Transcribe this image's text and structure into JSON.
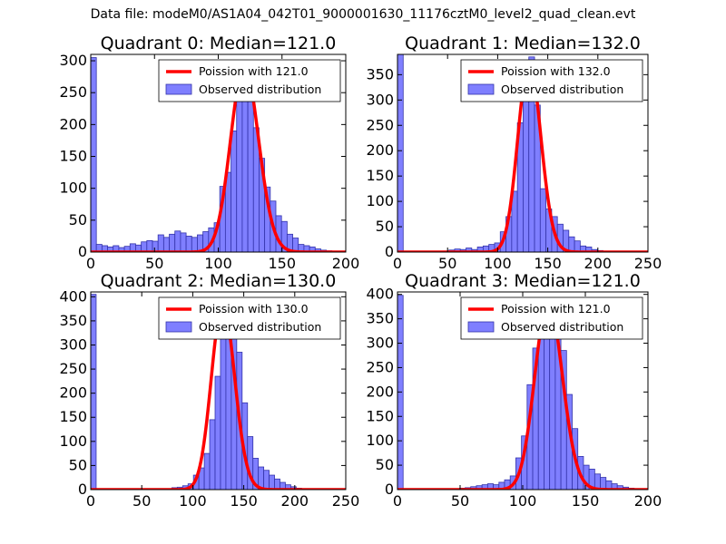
{
  "figure_title": "Data file: modeM0/AS1A04_042T01_9000001630_11176cztM0_level2_quad_clean.evt",
  "colors": {
    "bar_fill": "#7f7fff",
    "bar_edge": "#3333aa",
    "curve": "#ff0000"
  },
  "chart_data": [
    {
      "type": "bar",
      "title": "Quadrant 0: Median=121.0",
      "xlim": [
        0,
        200
      ],
      "ylim": [
        0,
        310
      ],
      "xticks": [
        0,
        50,
        100,
        150,
        200
      ],
      "yticks": [
        0,
        50,
        100,
        150,
        200,
        250,
        300
      ],
      "bin_width": 4.4,
      "bins": [
        0,
        4.4,
        8.8,
        13.2,
        17.6,
        22,
        26.4,
        30.8,
        35.2,
        39.6,
        44,
        48.4,
        52.8,
        57.2,
        61.6,
        66,
        70.4,
        74.8,
        79.2,
        83.6,
        88,
        92.4,
        96.8,
        101.2,
        105.6,
        110,
        114.4,
        118.8,
        123.2,
        127.6,
        132,
        136.4,
        140.8,
        145.2,
        149.6,
        154,
        158.4,
        162.8,
        167.2,
        171.6,
        176,
        180.4,
        184.8,
        189.2
      ],
      "counts": [
        305,
        12,
        10,
        8,
        10,
        7,
        9,
        13,
        11,
        16,
        18,
        17,
        27,
        23,
        28,
        33,
        30,
        25,
        23,
        27,
        32,
        38,
        46,
        103,
        125,
        190,
        285,
        285,
        240,
        195,
        147,
        102,
        80,
        57,
        48,
        28,
        22,
        12,
        10,
        8,
        5,
        3,
        2,
        1
      ],
      "curve_peak": 291,
      "legend": {
        "curve_label": "Poission with 121.0",
        "bars_label": "Observed distribution",
        "location": "upper right"
      }
    },
    {
      "type": "bar",
      "title": "Quadrant 1: Median=132.0",
      "xlim": [
        0,
        250
      ],
      "ylim": [
        0,
        390
      ],
      "xticks": [
        0,
        50,
        100,
        150,
        200,
        250
      ],
      "yticks": [
        0,
        50,
        100,
        150,
        200,
        250,
        300,
        350
      ],
      "bin_width": 5.7,
      "bins": [
        0,
        5.7,
        11.4,
        17.1,
        22.8,
        28.5,
        34.2,
        39.9,
        45.6,
        51.3,
        57,
        62.7,
        68.4,
        74.1,
        79.8,
        85.5,
        91.2,
        96.9,
        102.6,
        108.3,
        114,
        119.7,
        125.4,
        131.1,
        136.8,
        142.5,
        148.2,
        153.9,
        159.6,
        165.3,
        171,
        176.7,
        182.4,
        188.1,
        193.8,
        199.5,
        205.2,
        210.9,
        216.6,
        222.3
      ],
      "counts": [
        390,
        0,
        0,
        0,
        0,
        0,
        0,
        1,
        2,
        4,
        6,
        5,
        8,
        5,
        10,
        12,
        15,
        18,
        40,
        70,
        120,
        255,
        305,
        385,
        290,
        125,
        85,
        70,
        55,
        43,
        30,
        22,
        12,
        10,
        5,
        3,
        1,
        1,
        0,
        1
      ],
      "curve_peak": 374,
      "legend": {
        "curve_label": "Poission with 132.0",
        "bars_label": "Observed distribution",
        "location": "upper right"
      }
    },
    {
      "type": "bar",
      "title": "Quadrant 2: Median=130.0",
      "xlim": [
        0,
        250
      ],
      "ylim": [
        0,
        410
      ],
      "xticks": [
        0,
        50,
        100,
        150,
        200,
        250
      ],
      "yticks": [
        0,
        50,
        100,
        150,
        200,
        250,
        300,
        350,
        400
      ],
      "bin_width": 5.3,
      "bins": [
        0,
        5.3,
        10.6,
        15.9,
        21.2,
        26.5,
        31.8,
        37.1,
        42.4,
        47.7,
        53,
        58.3,
        63.6,
        68.9,
        74.2,
        79.5,
        84.8,
        90.1,
        95.4,
        100.7,
        106,
        111.3,
        116.6,
        121.9,
        127.2,
        132.5,
        137.8,
        143.1,
        148.4,
        153.7,
        159,
        164.3,
        169.6,
        174.9,
        180.2,
        185.5,
        190.8,
        196.1,
        201.4,
        206.7
      ],
      "counts": [
        405,
        0,
        0,
        0,
        0,
        0,
        0,
        0,
        0,
        0,
        0,
        0,
        0,
        1,
        2,
        4,
        5,
        8,
        12,
        30,
        45,
        75,
        145,
        235,
        350,
        385,
        375,
        285,
        180,
        110,
        65,
        47,
        40,
        30,
        22,
        15,
        10,
        6,
        3,
        2
      ],
      "curve_peak": 385,
      "legend": {
        "curve_label": "Poission with 130.0",
        "bars_label": "Observed distribution",
        "location": "upper right"
      }
    },
    {
      "type": "bar",
      "title": "Quadrant 3: Median=121.0",
      "xlim": [
        0,
        200
      ],
      "ylim": [
        0,
        405
      ],
      "xticks": [
        0,
        50,
        100,
        150,
        200
      ],
      "yticks": [
        0,
        50,
        100,
        150,
        200,
        250,
        300,
        350,
        400
      ],
      "bin_width": 4.5,
      "bins": [
        0,
        4.5,
        9,
        13.5,
        18,
        22.5,
        27,
        31.5,
        36,
        40.5,
        45,
        49.5,
        54,
        58.5,
        63,
        67.5,
        72,
        76.5,
        81,
        85.5,
        90,
        94.5,
        99,
        103.5,
        108,
        112.5,
        117,
        121.5,
        126,
        130.5,
        135,
        139.5,
        144,
        148.5,
        153,
        157.5,
        162,
        166.5,
        171,
        175.5,
        180,
        184.5,
        189,
        193.5
      ],
      "counts": [
        398,
        0,
        0,
        0,
        0,
        0,
        0,
        0,
        1,
        1,
        2,
        3,
        4,
        6,
        8,
        10,
        12,
        10,
        15,
        20,
        28,
        65,
        110,
        215,
        290,
        350,
        380,
        375,
        330,
        285,
        195,
        125,
        68,
        50,
        42,
        32,
        25,
        18,
        12,
        8,
        5,
        3,
        2,
        1
      ],
      "curve_peak": 385,
      "legend": {
        "curve_label": "Poission with 121.0",
        "bars_label": "Observed distribution",
        "location": "upper right"
      }
    }
  ]
}
